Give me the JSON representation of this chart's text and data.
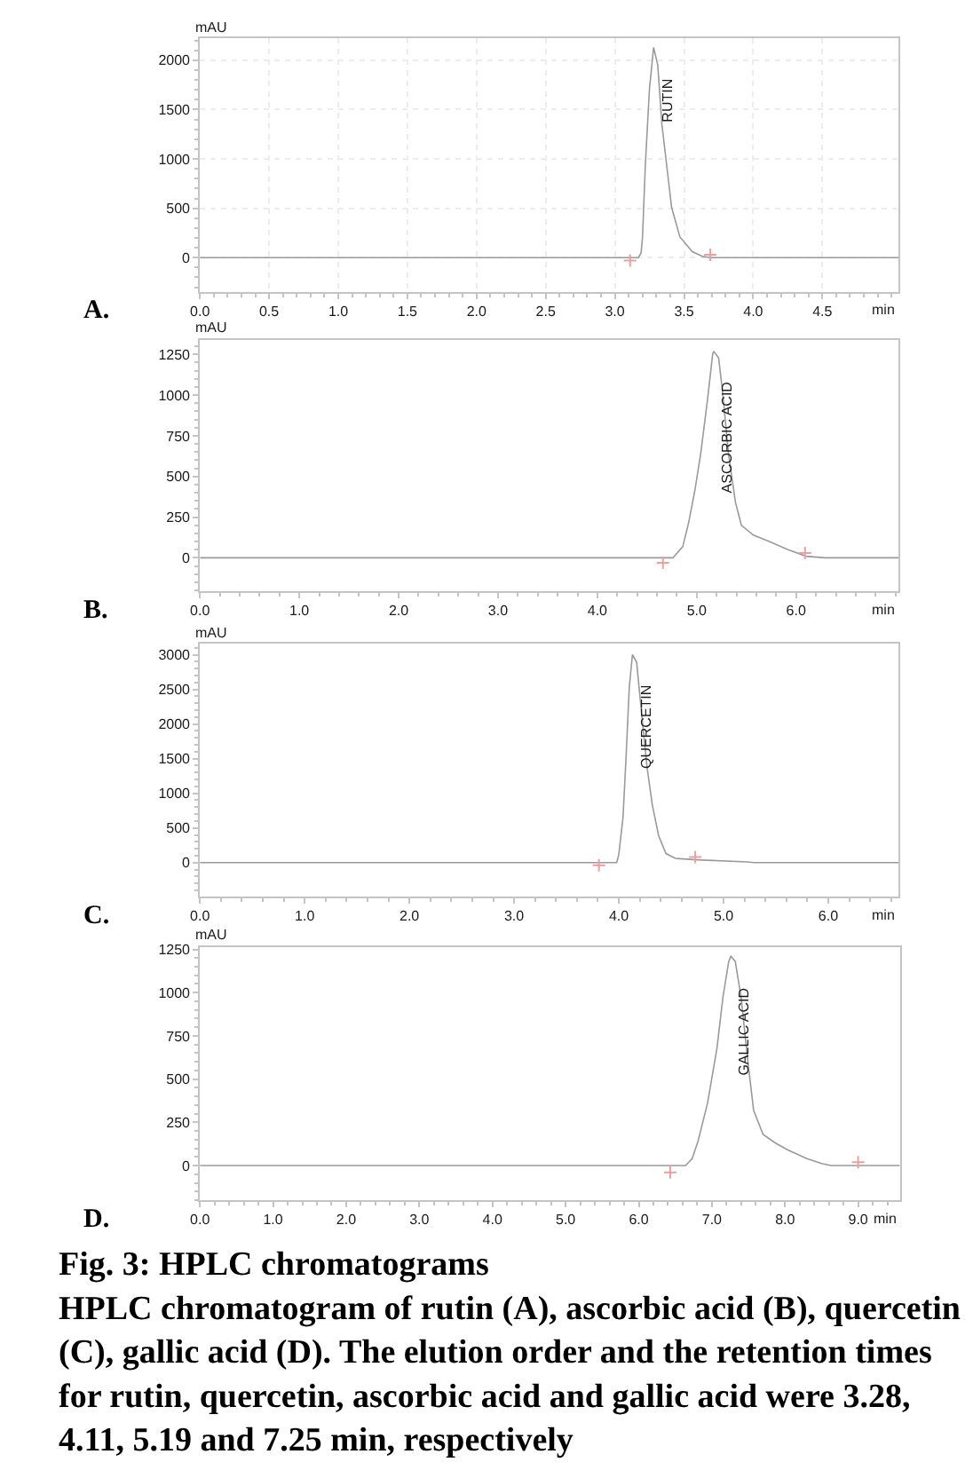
{
  "chart_data": [
    {
      "type": "line",
      "title": "A.",
      "xlabel": "min",
      "ylabel": "mAU",
      "xlim": [
        0,
        5.05
      ],
      "ylim": [
        -345,
        2220
      ],
      "xticks": [
        {
          "value": 0,
          "label": "0.0"
        },
        0.5,
        {
          "value": 1,
          "label": "1.0"
        },
        1.5,
        {
          "value": 2,
          "label": "2.0"
        },
        2.5,
        {
          "value": 3,
          "label": "3.0"
        },
        3.5,
        {
          "value": 4,
          "label": "4.0"
        },
        4.5
      ],
      "yticks": [
        0,
        500,
        1000,
        1500,
        2000
      ],
      "grid": true,
      "series": [
        {
          "color": "#9a9a9a",
          "x": [
            0,
            3.17,
            3.19,
            3.2,
            3.22,
            3.25,
            3.28,
            3.31,
            3.34,
            3.38,
            3.41,
            3.47,
            3.56,
            3.64,
            3.7,
            5.05
          ],
          "values": [
            0,
            0,
            50,
            210,
            930,
            1710,
            2130,
            1950,
            1350,
            870,
            510,
            210,
            60,
            10,
            0,
            0
          ]
        },
        {
          "type": "scatter",
          "marker": "cross",
          "color": "#e8a0a0",
          "x": [
            3.11,
            3.69
          ],
          "values": [
            -30,
            30
          ]
        }
      ],
      "annotations": [
        {
          "text": "RUTIN",
          "x": 3.28,
          "y": 2130
        }
      ]
    },
    {
      "type": "line",
      "title": "B.",
      "xlabel": "min",
      "ylabel": "mAU",
      "xlim": [
        0,
        7.03
      ],
      "ylim": [
        -205,
        1340
      ],
      "xticks": [
        {
          "value": 0,
          "label": "0.0"
        },
        {
          "value": 1,
          "label": "1.0"
        },
        {
          "value": 2,
          "label": "2.0"
        },
        {
          "value": 3,
          "label": "3.0"
        },
        {
          "value": 4,
          "label": "4.0"
        },
        {
          "value": 5,
          "label": "5.0"
        },
        {
          "value": 6,
          "label": "6.0"
        }
      ],
      "yticks": [
        0,
        250,
        500,
        750,
        1000,
        1250
      ],
      "series": [
        {
          "color": "#9a9a9a",
          "x": [
            0,
            4.76,
            4.86,
            4.92,
            4.98,
            5.04,
            5.11,
            5.16,
            5.17,
            5.22,
            5.26,
            5.32,
            5.39,
            5.45,
            5.57,
            5.73,
            5.92,
            6.1,
            6.29,
            7.03
          ],
          "values": [
            0,
            0,
            70,
            220,
            410,
            640,
            980,
            1250,
            1270,
            1230,
            1020,
            640,
            340,
            200,
            140,
            100,
            50,
            10,
            0,
            0
          ]
        },
        {
          "type": "scatter",
          "marker": "cross",
          "color": "#e8a0a0",
          "x": [
            4.66,
            6.09
          ],
          "values": [
            -30,
            30
          ]
        }
      ],
      "annotations": [
        {
          "text": "ASCORBIC ACID",
          "x": 5.17,
          "y": 1270
        }
      ]
    },
    {
      "type": "line",
      "title": "C.",
      "xlabel": "min",
      "ylabel": "mAU",
      "xlim": [
        0,
        6.67
      ],
      "ylim": [
        -490,
        3160
      ],
      "xticks": [
        {
          "value": 0,
          "label": "0.0"
        },
        {
          "value": 1,
          "label": "1.0"
        },
        {
          "value": 2,
          "label": "2.0"
        },
        {
          "value": 3,
          "label": "3.0"
        },
        {
          "value": 4,
          "label": "4.0"
        },
        {
          "value": 5,
          "label": "5.0"
        },
        {
          "value": 6,
          "label": "6.0"
        }
      ],
      "yticks": [
        0,
        500,
        1000,
        1500,
        2000,
        2500,
        3000
      ],
      "series": [
        {
          "color": "#9a9a9a",
          "x": [
            0,
            3.98,
            4.0,
            4.04,
            4.07,
            4.1,
            4.13,
            4.17,
            4.21,
            4.27,
            4.32,
            4.38,
            4.45,
            4.54,
            4.75,
            5.23,
            5.29,
            6.67
          ],
          "values": [
            0,
            0,
            120,
            650,
            1550,
            2530,
            3000,
            2890,
            2270,
            1370,
            830,
            390,
            130,
            60,
            40,
            10,
            0,
            0
          ]
        },
        {
          "type": "scatter",
          "marker": "cross",
          "color": "#e8a0a0",
          "x": [
            3.81,
            4.73
          ],
          "values": [
            -40,
            80
          ]
        }
      ],
      "annotations": [
        {
          "text": "QUERCETIN",
          "x": 4.13,
          "y": 3000
        }
      ]
    },
    {
      "type": "line",
      "title": "D.",
      "xlabel": "min",
      "ylabel": "mAU",
      "xlim": [
        0,
        9.57
      ],
      "ylim": [
        -200,
        1265
      ],
      "xticks": [
        {
          "value": 0,
          "label": "0.0"
        },
        {
          "value": 1,
          "label": "1.0"
        },
        {
          "value": 2,
          "label": "2.0"
        },
        {
          "value": 3,
          "label": "3.0"
        },
        {
          "value": 4,
          "label": "4.0"
        },
        {
          "value": 5,
          "label": "5.0"
        },
        {
          "value": 6,
          "label": "6.0"
        },
        {
          "value": 7,
          "label": "7.0"
        },
        {
          "value": 8,
          "label": "8.0"
        },
        {
          "value": 9,
          "label": "9.0"
        }
      ],
      "yticks": [
        0,
        250,
        500,
        750,
        1000,
        1250
      ],
      "series": [
        {
          "color": "#9a9a9a",
          "x": [
            0,
            6.64,
            6.73,
            6.81,
            6.94,
            7.07,
            7.15,
            7.23,
            7.26,
            7.32,
            7.4,
            7.49,
            7.57,
            7.7,
            7.87,
            8.04,
            8.3,
            8.51,
            8.63,
            9.57
          ],
          "values": [
            0,
            0,
            40,
            140,
            360,
            680,
            970,
            1180,
            1210,
            1180,
            970,
            610,
            320,
            180,
            130,
            90,
            40,
            10,
            0,
            0
          ]
        },
        {
          "type": "scatter",
          "marker": "cross",
          "color": "#e8a0a0",
          "x": [
            6.43,
            9.0
          ],
          "values": [
            -40,
            20
          ]
        }
      ],
      "annotations": [
        {
          "text": "GALLIC ACID",
          "x": 7.26,
          "y": 1210
        },
        "Fig. 3: HPLC chromatograms",
        "HPLC chromatogram of rutin (A), ascorbic acid (B), quercetin (C), gallic acid (D). The elution order and the retention times for rutin, quercetin, ascorbic acid and gallic acid were 3.28, 4.11, 5.19 and 7.25 min, respectively"
      ]
    }
  ]
}
